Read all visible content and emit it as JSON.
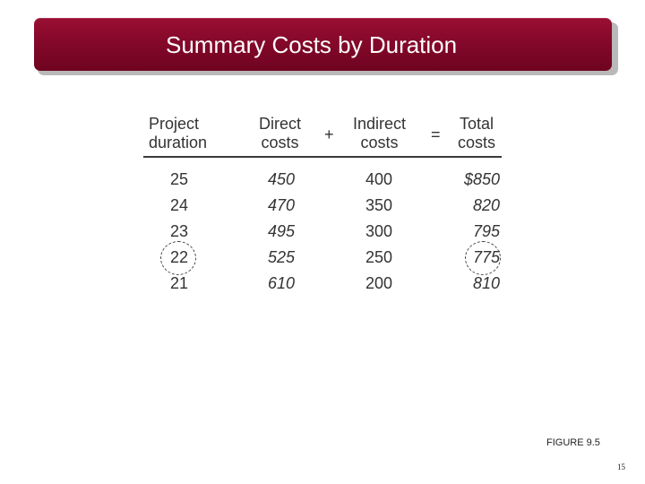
{
  "slide": {
    "title": "Summary Costs by Duration",
    "figure_label": "FIGURE 9.5",
    "page_number": "15"
  },
  "table": {
    "headers": {
      "duration": [
        "Project",
        "duration"
      ],
      "direct": [
        "Direct",
        "costs"
      ],
      "indirect": [
        "Indirect",
        "costs"
      ],
      "total": [
        "Total",
        "costs"
      ]
    },
    "operators": {
      "plus": "+",
      "equals": "="
    },
    "rows": [
      {
        "duration": "25",
        "direct": "450",
        "indirect": "400",
        "total": "$850"
      },
      {
        "duration": "24",
        "direct": "470",
        "indirect": "350",
        "total": "820"
      },
      {
        "duration": "23",
        "direct": "495",
        "indirect": "300",
        "total": "795"
      },
      {
        "duration": "22",
        "direct": "525",
        "indirect": "250",
        "total": "775"
      },
      {
        "duration": "21",
        "direct": "610",
        "indirect": "200",
        "total": "810"
      }
    ],
    "highlighted_row_index": 3
  },
  "colors": {
    "title_bar": "#85082a",
    "title_text": "#ffffff",
    "table_text": "#333333"
  }
}
